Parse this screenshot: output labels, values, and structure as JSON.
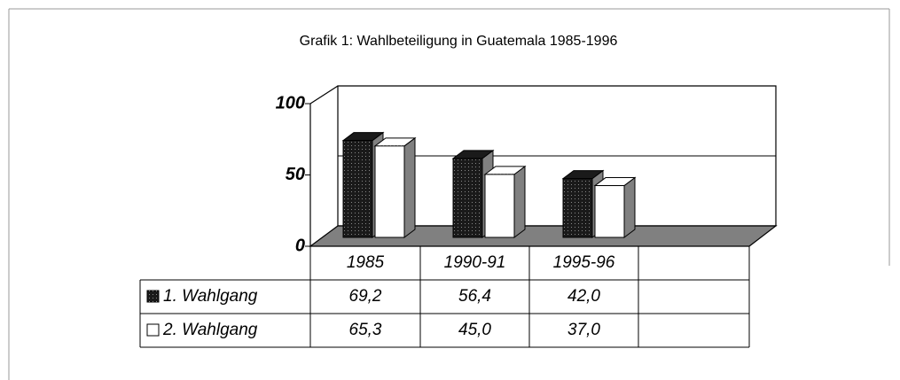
{
  "chart_data": {
    "type": "bar",
    "title": "Grafik 1: Wahlbeteiligung in Guatemala 1985-1996",
    "categories": [
      "1985",
      "1990-91",
      "1995-96"
    ],
    "series": [
      {
        "name": "1. Wahlgang",
        "color": "#1a1a1a",
        "values": [
          69.2,
          56.4,
          42.0
        ],
        "value_labels": [
          "69,2",
          "56,4",
          "42,0"
        ]
      },
      {
        "name": "2. Wahlgang",
        "color": "#ffffff",
        "values": [
          65.3,
          45.0,
          37.0
        ],
        "value_labels": [
          "65,3",
          "45,0",
          "37,0"
        ]
      }
    ],
    "ylim": [
      0,
      100
    ],
    "yticks": [
      0,
      50,
      100
    ],
    "grid": true
  }
}
